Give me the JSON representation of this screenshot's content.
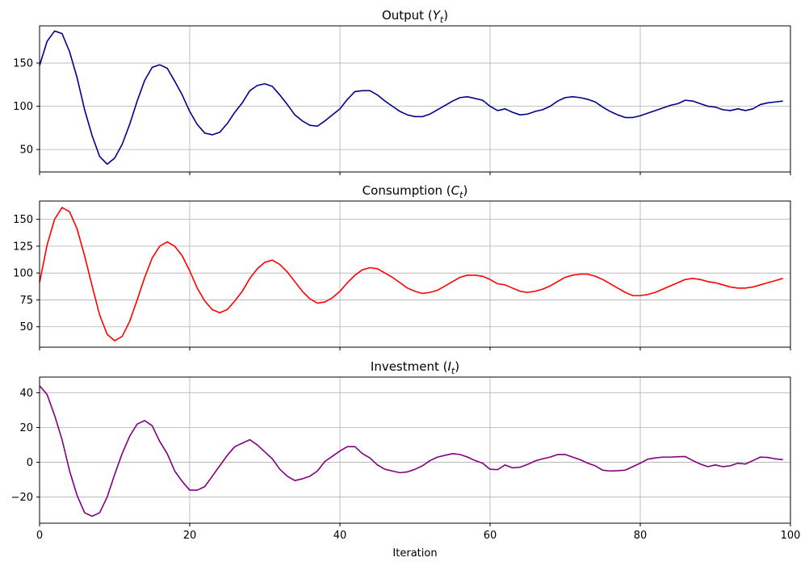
{
  "figure": {
    "xlabel": "Iteration"
  },
  "chart_data": [
    {
      "type": "line",
      "title": "Output (Y_t)",
      "title_main": "Output (",
      "title_var": "Y",
      "title_sub": "t",
      "title_end": ")",
      "xlabel": "",
      "ylabel": "",
      "xlim": [
        0,
        100
      ],
      "ylim": [
        24,
        193
      ],
      "yticks": [
        50,
        100,
        150
      ],
      "xticks": [
        0,
        20,
        40,
        60,
        80,
        100
      ],
      "show_xtick_labels": false,
      "grid": true,
      "color": "#00008b",
      "series": [
        {
          "x": [
            0,
            1,
            2,
            3,
            4,
            5,
            6,
            7,
            8,
            9,
            10,
            11,
            12,
            13,
            14,
            15,
            16,
            17,
            18,
            19,
            20,
            21,
            22,
            23,
            24,
            25,
            26,
            27,
            28,
            29,
            30,
            31,
            32,
            33,
            34,
            35,
            36,
            37,
            38,
            39,
            40,
            41,
            42,
            43,
            44,
            45,
            46,
            47,
            48,
            49,
            50,
            51,
            52,
            53,
            54,
            55,
            56,
            57,
            58,
            59,
            60,
            61,
            62,
            63,
            64,
            65,
            66,
            67,
            68,
            69,
            70,
            71,
            72,
            73,
            74,
            75,
            76,
            77,
            78,
            79,
            80,
            81,
            82,
            83,
            84,
            85,
            86,
            87,
            88,
            89,
            90,
            91,
            92,
            93,
            94,
            95,
            96,
            97,
            98,
            99
          ],
          "values": [
            147,
            175,
            187,
            184,
            163,
            133,
            96,
            66,
            42,
            33,
            40,
            56,
            79,
            106,
            130,
            145,
            148,
            144,
            129,
            113,
            94,
            79,
            69,
            67,
            70,
            80,
            93,
            104,
            118,
            124,
            126,
            123,
            113,
            102,
            90,
            83,
            78,
            77,
            83,
            90,
            97,
            108,
            117,
            118,
            118,
            113,
            106,
            100,
            94,
            90,
            88,
            88,
            91,
            96,
            101,
            106,
            110,
            111,
            109,
            107,
            100,
            95,
            97,
            93,
            90,
            91,
            94,
            96,
            100,
            106,
            110,
            111,
            110,
            108,
            105,
            99,
            94,
            90,
            87,
            87,
            89,
            92,
            95,
            98,
            101,
            103,
            107,
            106,
            103,
            100,
            99,
            96,
            95,
            97,
            95,
            97,
            102,
            104,
            105,
            106
          ]
        }
      ]
    },
    {
      "type": "line",
      "title": "Consumption (C_t)",
      "title_main": "Consumption (",
      "title_var": "C",
      "title_sub": "t",
      "title_end": ")",
      "xlabel": "",
      "ylabel": "",
      "xlim": [
        0,
        100
      ],
      "ylim": [
        31,
        167
      ],
      "yticks": [
        50,
        75,
        100,
        125,
        150
      ],
      "xticks": [
        0,
        20,
        40,
        60,
        80,
        100
      ],
      "show_xtick_labels": false,
      "grid": true,
      "color": "#ff0000",
      "series": [
        {
          "x": [
            0,
            1,
            2,
            3,
            4,
            5,
            6,
            7,
            8,
            9,
            10,
            11,
            12,
            13,
            14,
            15,
            16,
            17,
            18,
            19,
            20,
            21,
            22,
            23,
            24,
            25,
            26,
            27,
            28,
            29,
            30,
            31,
            32,
            33,
            34,
            35,
            36,
            37,
            38,
            39,
            40,
            41,
            42,
            43,
            44,
            45,
            46,
            47,
            48,
            49,
            50,
            51,
            52,
            53,
            54,
            55,
            56,
            57,
            58,
            59,
            60,
            61,
            62,
            63,
            64,
            65,
            66,
            67,
            68,
            69,
            70,
            71,
            72,
            73,
            74,
            75,
            76,
            77,
            78,
            79,
            80,
            81,
            82,
            83,
            84,
            85,
            86,
            87,
            88,
            89,
            90,
            91,
            92,
            93,
            94,
            95,
            96,
            97,
            98,
            99
          ],
          "values": [
            91,
            126,
            150,
            161,
            157,
            141,
            116,
            88,
            61,
            43,
            37,
            41,
            55,
            75,
            96,
            114,
            125,
            129,
            125,
            116,
            102,
            86,
            74,
            66,
            63,
            66,
            74,
            83,
            95,
            104,
            110,
            112,
            108,
            101,
            92,
            83,
            76,
            72,
            73,
            77,
            83,
            91,
            98,
            103,
            105,
            104,
            100,
            96,
            91,
            86,
            83,
            81,
            82,
            84,
            88,
            92,
            96,
            98,
            98,
            97,
            94,
            90,
            89,
            86,
            83,
            82,
            83,
            85,
            88,
            92,
            96,
            98,
            99,
            99,
            97,
            94,
            90,
            86,
            82,
            79,
            79,
            80,
            82,
            85,
            88,
            91,
            94,
            95,
            94,
            92,
            91,
            89,
            87,
            86,
            86,
            87,
            89,
            91,
            93,
            95
          ]
        }
      ]
    },
    {
      "type": "line",
      "title": "Investment (I_t)",
      "title_main": "Investment (",
      "title_var": "I",
      "title_sub": "t",
      "title_end": ")",
      "xlabel": "Iteration",
      "ylabel": "",
      "xlim": [
        0,
        100
      ],
      "ylim": [
        -35,
        49
      ],
      "yticks": [
        -20,
        0,
        20,
        40
      ],
      "xticks": [
        0,
        20,
        40,
        60,
        80,
        100
      ],
      "show_xtick_labels": true,
      "grid": true,
      "color": "#800080",
      "series": [
        {
          "x": [
            0,
            1,
            2,
            3,
            4,
            5,
            6,
            7,
            8,
            9,
            10,
            11,
            12,
            13,
            14,
            15,
            16,
            17,
            18,
            19,
            20,
            21,
            22,
            23,
            24,
            25,
            26,
            27,
            28,
            29,
            30,
            31,
            32,
            33,
            34,
            35,
            36,
            37,
            38,
            39,
            40,
            41,
            42,
            43,
            44,
            45,
            46,
            47,
            48,
            49,
            50,
            51,
            52,
            53,
            54,
            55,
            56,
            57,
            58,
            59,
            60,
            61,
            62,
            63,
            64,
            65,
            66,
            67,
            68,
            69,
            70,
            71,
            72,
            73,
            74,
            75,
            76,
            77,
            78,
            79,
            80,
            81,
            82,
            83,
            84,
            85,
            86,
            87,
            88,
            89,
            90,
            91,
            92,
            93,
            94,
            95,
            96,
            97,
            98,
            99
          ],
          "values": [
            44,
            39,
            27,
            13,
            -5,
            -19,
            -29,
            -31,
            -29,
            -20,
            -7,
            5,
            15,
            22,
            24,
            21,
            12,
            5,
            -5,
            -11,
            -16,
            -16,
            -14,
            -8,
            -2,
            4,
            9,
            11,
            13,
            10,
            6,
            2,
            -4,
            -8,
            -10.5,
            -9.5,
            -8,
            -5,
            0.5,
            3.5,
            6.5,
            9,
            9,
            5,
            2.5,
            -1.5,
            -4,
            -5,
            -6,
            -5.5,
            -4,
            -2,
            1,
            3,
            4,
            5,
            4.5,
            3,
            1,
            -0.5,
            -4,
            -4.2,
            -1.5,
            -3.2,
            -2.8,
            -1.2,
            0.8,
            2,
            3,
            4.5,
            4.5,
            3,
            1.5,
            -0.5,
            -2,
            -4.5,
            -5,
            -4.8,
            -4.5,
            -2.5,
            -0.5,
            1.8,
            2.5,
            3,
            3,
            3.2,
            3.3,
            1,
            -1,
            -2.5,
            -1.5,
            -2.5,
            -2,
            -0.5,
            -1,
            1,
            3,
            2.8,
            2,
            1.5
          ]
        }
      ]
    }
  ]
}
